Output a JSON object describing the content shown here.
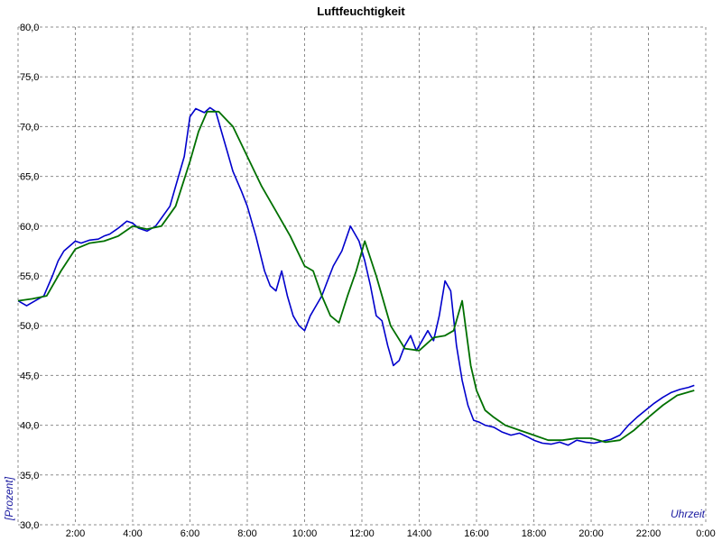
{
  "chart_data": {
    "type": "line",
    "title": "Luftfeuchtigkeit",
    "xlabel": "Uhrzeit",
    "ylabel": "[Prozent]",
    "xlim": [
      0,
      24
    ],
    "ylim": [
      30,
      80
    ],
    "grid": true,
    "x_tick_labels": [
      "0:00",
      "2:00",
      "4:00",
      "6:00",
      "8:00",
      "10:00",
      "12:00",
      "14:00",
      "16:00",
      "18:00",
      "20:00",
      "22:00",
      "0:00"
    ],
    "x_tick_values": [
      0,
      2,
      4,
      6,
      8,
      10,
      12,
      14,
      16,
      18,
      20,
      22,
      24
    ],
    "y_tick_labels": [
      "30,0",
      "35,0",
      "40,0",
      "45,0",
      "50,0",
      "55,0",
      "60,0",
      "65,0",
      "70,0",
      "75,0",
      "80,0"
    ],
    "y_tick_values": [
      30,
      35,
      40,
      45,
      50,
      55,
      60,
      65,
      70,
      75,
      80
    ],
    "colors": {
      "raw": "#0000cc",
      "smooth": "#007000"
    },
    "series": [
      {
        "key": "raw",
        "x": [
          0,
          0.3,
          0.6,
          0.9,
          1.2,
          1.4,
          1.6,
          1.8,
          2.0,
          2.2,
          2.5,
          2.8,
          3.0,
          3.2,
          3.5,
          3.8,
          4.0,
          4.2,
          4.5,
          4.8,
          5.0,
          5.3,
          5.5,
          5.8,
          6.0,
          6.2,
          6.5,
          6.7,
          6.9,
          7.1,
          7.3,
          7.5,
          7.8,
          8.0,
          8.3,
          8.6,
          8.8,
          9.0,
          9.2,
          9.4,
          9.6,
          9.8,
          10.0,
          10.2,
          10.4,
          10.6,
          10.8,
          11.0,
          11.3,
          11.6,
          11.9,
          12.1,
          12.3,
          12.5,
          12.7,
          12.9,
          13.1,
          13.3,
          13.5,
          13.7,
          13.9,
          14.1,
          14.3,
          14.5,
          14.7,
          14.9,
          15.1,
          15.3,
          15.5,
          15.7,
          15.9,
          16.1,
          16.3,
          16.6,
          16.9,
          17.2,
          17.5,
          17.8,
          18.0,
          18.3,
          18.6,
          18.9,
          19.2,
          19.5,
          19.8,
          20.1,
          20.4,
          20.7,
          21.0,
          21.3,
          21.6,
          21.9,
          22.2,
          22.5,
          22.8,
          23.1,
          23.4,
          23.6
        ],
        "y": [
          52.5,
          52.0,
          52.5,
          53.0,
          55.0,
          56.5,
          57.5,
          58.0,
          58.5,
          58.3,
          58.6,
          58.7,
          59.0,
          59.2,
          59.8,
          60.5,
          60.3,
          59.8,
          59.5,
          60.0,
          60.8,
          62.0,
          64.0,
          67.0,
          71.0,
          71.8,
          71.4,
          71.9,
          71.5,
          69.5,
          67.5,
          65.5,
          63.5,
          62.0,
          59.0,
          55.5,
          54.0,
          53.5,
          55.5,
          53.0,
          51.0,
          50.0,
          49.5,
          51.0,
          52.0,
          53.0,
          54.5,
          56.0,
          57.5,
          60.0,
          58.5,
          56.5,
          54.0,
          51.0,
          50.5,
          48.0,
          46.0,
          46.5,
          48.0,
          49.0,
          47.5,
          48.5,
          49.5,
          48.5,
          51.0,
          54.5,
          53.5,
          48.0,
          44.5,
          42.0,
          40.5,
          40.3,
          40.0,
          39.8,
          39.3,
          39.0,
          39.2,
          38.8,
          38.5,
          38.2,
          38.1,
          38.3,
          38.0,
          38.5,
          38.3,
          38.2,
          38.4,
          38.6,
          39.0,
          40.0,
          40.8,
          41.5,
          42.2,
          42.8,
          43.3,
          43.6,
          43.8,
          44.0
        ]
      },
      {
        "key": "smooth",
        "x": [
          0,
          0.5,
          1.0,
          1.5,
          2.0,
          2.5,
          3.0,
          3.5,
          4.0,
          4.5,
          5.0,
          5.5,
          6.0,
          6.3,
          6.6,
          7.0,
          7.5,
          8.0,
          8.5,
          9.0,
          9.5,
          10.0,
          10.3,
          10.6,
          10.9,
          11.2,
          11.5,
          11.8,
          12.1,
          12.5,
          13.0,
          13.5,
          14.0,
          14.5,
          14.9,
          15.2,
          15.5,
          15.8,
          16.0,
          16.3,
          16.6,
          17.0,
          17.5,
          18.0,
          18.5,
          19.0,
          19.5,
          20.0,
          20.5,
          21.0,
          21.5,
          22.0,
          22.5,
          23.0,
          23.6
        ],
        "y": [
          52.5,
          52.7,
          53.0,
          55.5,
          57.7,
          58.3,
          58.5,
          59.0,
          60.0,
          59.7,
          60.0,
          62.0,
          66.5,
          69.5,
          71.5,
          71.5,
          70.0,
          67.0,
          64.0,
          61.5,
          59.0,
          56.0,
          55.5,
          53.0,
          51.0,
          50.3,
          53.0,
          55.5,
          58.5,
          55.0,
          50.0,
          47.7,
          47.5,
          48.8,
          49.0,
          49.5,
          52.5,
          46.0,
          43.5,
          41.5,
          40.8,
          40.0,
          39.5,
          39.0,
          38.5,
          38.5,
          38.7,
          38.7,
          38.3,
          38.5,
          39.5,
          40.8,
          42.0,
          43.0,
          43.5
        ]
      }
    ]
  }
}
